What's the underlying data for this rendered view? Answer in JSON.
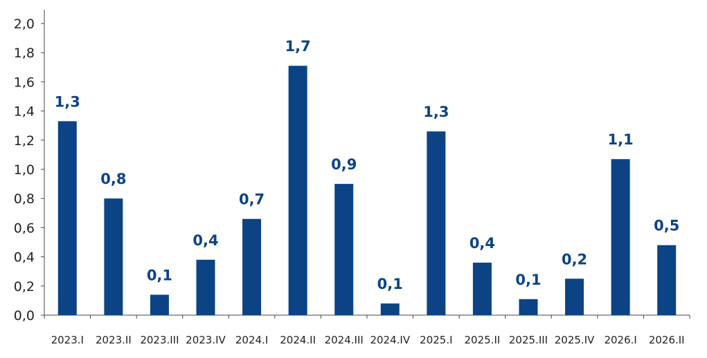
{
  "chart_data": {
    "type": "bar",
    "categories": [
      "2023.I",
      "2023.II",
      "2023.III",
      "2023.IV",
      "2024.I",
      "2024.II",
      "2024.III",
      "2024.IV",
      "2025.I",
      "2025.II",
      "2025.III",
      "2025.IV",
      "2026.I",
      "2026.II"
    ],
    "values": [
      1.33,
      0.8,
      0.14,
      0.38,
      0.66,
      1.71,
      0.9,
      0.08,
      1.26,
      0.36,
      0.11,
      0.25,
      1.07,
      0.48
    ],
    "data_labels": [
      "1,3",
      "0,8",
      "0,1",
      "0,4",
      "0,7",
      "1,7",
      "0,9",
      "0,1",
      "1,3",
      "0,4",
      "0,1",
      "0,2",
      "1,1",
      "0,5"
    ],
    "y_ticks": [
      "0,0",
      "0,2",
      "0,4",
      "0,6",
      "0,8",
      "1,0",
      "1,2",
      "1,4",
      "1,6",
      "1,8",
      "2,0"
    ],
    "ylim": [
      0,
      2.0
    ],
    "title": "",
    "xlabel": "",
    "ylabel": "",
    "grid": false,
    "legend": "none",
    "colors": {
      "bar": "#0c4385",
      "label": "#0c4385",
      "axis": "#444444"
    }
  }
}
